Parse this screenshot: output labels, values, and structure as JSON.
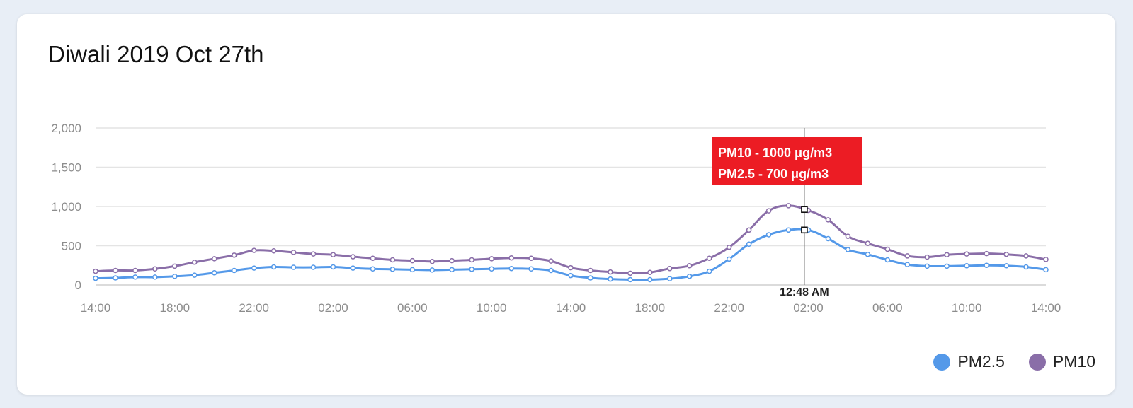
{
  "card": {
    "title": "Diwali 2019 Oct 27th"
  },
  "chart_data": {
    "type": "line",
    "title": "Diwali 2019 Oct 27th",
    "xlabel": "",
    "ylabel": "",
    "ylim": [
      0,
      2000
    ],
    "yticks": [
      0,
      500,
      1000,
      1500,
      2000
    ],
    "ytick_labels": [
      "0",
      "500",
      "1,000",
      "1,500",
      "2,000"
    ],
    "xtick_labels": [
      "14:00",
      "18:00",
      "22:00",
      "02:00",
      "06:00",
      "10:00",
      "14:00",
      "18:00",
      "22:00",
      "02:00",
      "06:00",
      "10:00",
      "14:00"
    ],
    "x": [
      "14:00",
      "15:00",
      "16:00",
      "17:00",
      "18:00",
      "19:00",
      "20:00",
      "21:00",
      "22:00",
      "23:00",
      "00:00",
      "01:00",
      "02:00",
      "03:00",
      "04:00",
      "05:00",
      "06:00",
      "07:00",
      "08:00",
      "09:00",
      "10:00",
      "11:00",
      "12:00",
      "13:00",
      "14:00",
      "15:00",
      "16:00",
      "17:00",
      "18:00",
      "19:00",
      "20:00",
      "21:00",
      "22:00",
      "23:00",
      "00:00",
      "01:00",
      "02:00",
      "03:00",
      "04:00",
      "05:00",
      "06:00",
      "07:00",
      "08:00",
      "09:00",
      "10:00",
      "11:00",
      "12:00",
      "13:00",
      "14:00"
    ],
    "grid": true,
    "legend_position": "bottom-right",
    "series": [
      {
        "name": "PM2.5",
        "color": "#5499e9",
        "values": [
          85,
          90,
          100,
          100,
          110,
          125,
          155,
          185,
          215,
          230,
          225,
          225,
          230,
          215,
          205,
          200,
          195,
          190,
          195,
          200,
          205,
          210,
          205,
          185,
          120,
          90,
          75,
          68,
          68,
          80,
          110,
          175,
          330,
          520,
          640,
          700,
          700,
          590,
          450,
          390,
          320,
          260,
          240,
          240,
          245,
          250,
          245,
          230,
          195
        ]
      },
      {
        "name": "PM10",
        "color": "#8a6ea8",
        "values": [
          175,
          185,
          185,
          205,
          240,
          290,
          335,
          380,
          440,
          435,
          415,
          395,
          385,
          360,
          340,
          320,
          310,
          300,
          310,
          320,
          335,
          345,
          340,
          305,
          220,
          185,
          165,
          150,
          160,
          210,
          245,
          340,
          480,
          700,
          945,
          1010,
          950,
          830,
          620,
          530,
          455,
          370,
          355,
          385,
          395,
          400,
          390,
          370,
          325
        ]
      }
    ],
    "annotations": [
      {
        "type": "tooltip",
        "crosshair_x_label": "12:48 AM",
        "lines": [
          "PM10 - 1000 μg/m3",
          "PM2.5 - 700  μg/m3"
        ],
        "background": "#ec1c24"
      }
    ]
  },
  "legend": [
    {
      "label": "PM2.5",
      "color": "#5499e9"
    },
    {
      "label": "PM10",
      "color": "#8a6ea8"
    }
  ]
}
